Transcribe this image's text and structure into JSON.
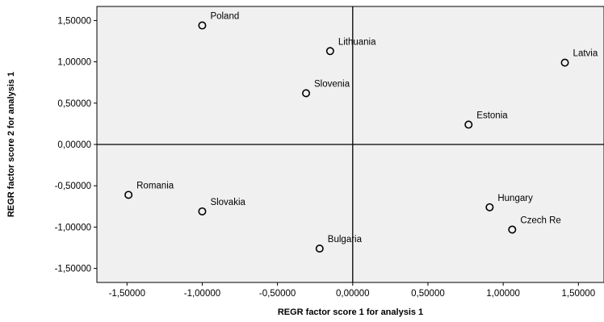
{
  "chart_data": {
    "type": "scatter",
    "title": "",
    "xlabel": "REGR factor score   1 for analysis 1",
    "ylabel": "REGR factor score   2 for analysis 1",
    "xlim": [
      -1.7,
      1.67
    ],
    "ylim": [
      -1.67,
      1.67
    ],
    "xticks": [
      -1.5,
      -1.0,
      -0.5,
      0.0,
      0.5,
      1.0,
      1.5
    ],
    "yticks": [
      1.5,
      1.0,
      0.5,
      0.0,
      -0.5,
      -1.0,
      -1.5
    ],
    "xtick_labels": [
      "-1,50000",
      "-1,00000",
      "-0,50000",
      "0,00000",
      "0,50000",
      "1,00000",
      "1,50000"
    ],
    "ytick_labels": [
      "1,50000",
      "1,00000",
      "0,50000",
      "0,00000",
      "-0,50000",
      "-1,00000",
      "-1,50000"
    ],
    "reference_lines": {
      "x": 0,
      "y": 0
    },
    "grid": false,
    "plot_background": "#f0f0f0",
    "marker": "open-circle",
    "points": [
      {
        "label": "Poland",
        "x": -1.0,
        "y": 1.44
      },
      {
        "label": "Lithuania",
        "x": -0.15,
        "y": 1.13
      },
      {
        "label": "Latvia",
        "x": 1.41,
        "y": 0.99
      },
      {
        "label": "Slovenia",
        "x": -0.31,
        "y": 0.62
      },
      {
        "label": "Estonia",
        "x": 0.77,
        "y": 0.24
      },
      {
        "label": "Romania",
        "x": -1.49,
        "y": -0.61
      },
      {
        "label": "Slovakia",
        "x": -1.0,
        "y": -0.81
      },
      {
        "label": "Hungary",
        "x": 0.91,
        "y": -0.76
      },
      {
        "label": "Czech Re",
        "x": 1.06,
        "y": -1.03
      },
      {
        "label": "Bulgaria",
        "x": -0.22,
        "y": -1.26
      }
    ]
  }
}
